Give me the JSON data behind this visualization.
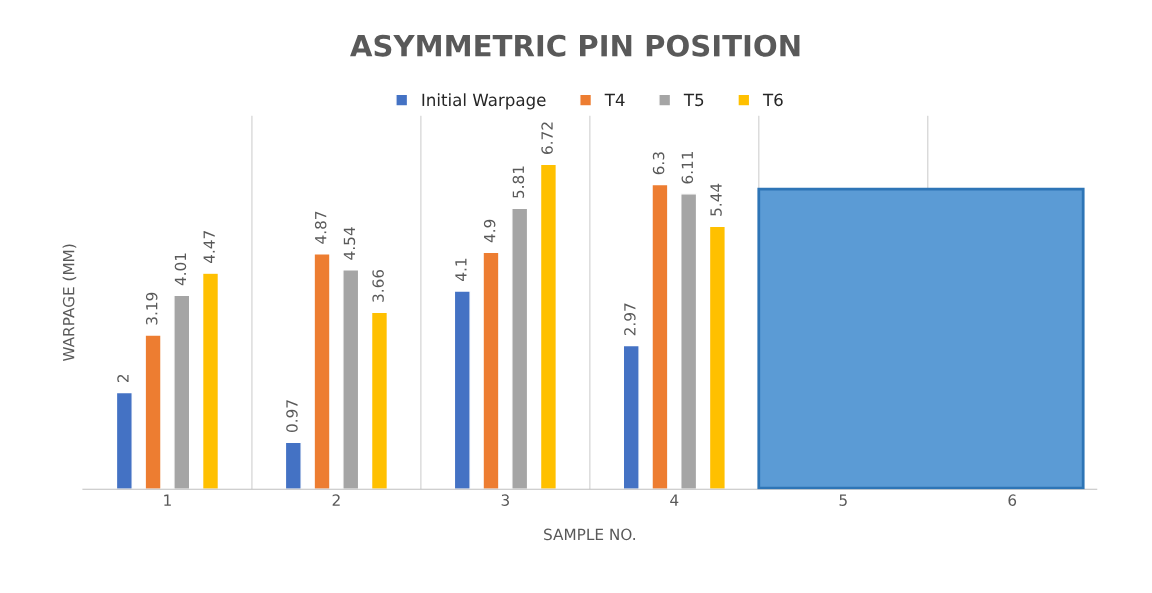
{
  "chart_data": {
    "type": "bar",
    "title": "ASYMMETRIC PIN POSITION",
    "xlabel": "SAMPLE NO.",
    "ylabel": "WARPAGE (MM)",
    "categories": [
      "1",
      "2",
      "3",
      "4",
      "5",
      "6"
    ],
    "series": [
      {
        "name": "Initial Warpage",
        "color": "#4472c4",
        "values": [
          2,
          0.97,
          4.1,
          2.97,
          null,
          null
        ]
      },
      {
        "name": "T4",
        "color": "#ed7d31",
        "values": [
          3.19,
          4.87,
          4.9,
          6.3,
          null,
          null
        ]
      },
      {
        "name": "T5",
        "color": "#a5a5a5",
        "values": [
          4.01,
          4.54,
          5.81,
          6.11,
          null,
          null
        ]
      },
      {
        "name": "T6",
        "color": "#ffc000",
        "values": [
          4.47,
          3.66,
          6.72,
          5.44,
          null,
          null
        ]
      }
    ],
    "data_labels": true,
    "legend": "top",
    "grid": "x",
    "tick_labels": "x"
  }
}
